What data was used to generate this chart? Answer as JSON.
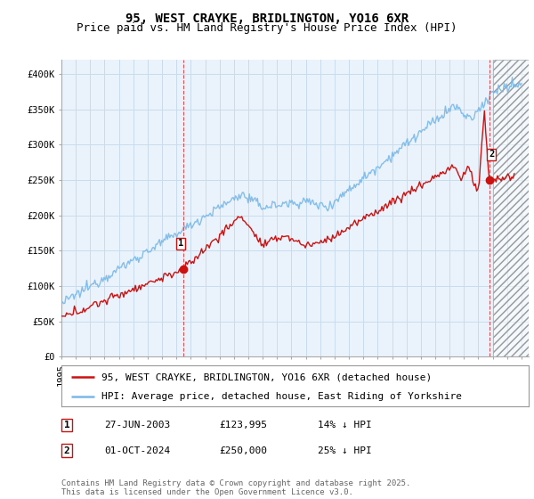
{
  "title": "95, WEST CRAYKE, BRIDLINGTON, YO16 6XR",
  "subtitle": "Price paid vs. HM Land Registry's House Price Index (HPI)",
  "ylim": [
    0,
    420000
  ],
  "yticks": [
    0,
    50000,
    100000,
    150000,
    200000,
    250000,
    300000,
    350000,
    400000
  ],
  "ytick_labels": [
    "£0",
    "£50K",
    "£100K",
    "£150K",
    "£200K",
    "£250K",
    "£300K",
    "£350K",
    "£400K"
  ],
  "xlim_start": 1995.0,
  "xlim_end": 2027.5,
  "background_color": "#ffffff",
  "grid_color": "#c8dced",
  "hpi_color": "#7ab8e8",
  "price_color": "#cc1111",
  "marker1_date": 2003.49,
  "marker1_price": 123995,
  "marker2_date": 2024.75,
  "marker2_price": 250000,
  "legend_line1": "95, WEST CRAYKE, BRIDLINGTON, YO16 6XR (detached house)",
  "legend_line2": "HPI: Average price, detached house, East Riding of Yorkshire",
  "annotation1_label": "1",
  "annotation2_label": "2",
  "table_row1": [
    "1",
    "27-JUN-2003",
    "£123,995",
    "14% ↓ HPI"
  ],
  "table_row2": [
    "2",
    "01-OCT-2024",
    "£250,000",
    "25% ↓ HPI"
  ],
  "footer": "Contains HM Land Registry data © Crown copyright and database right 2025.\nThis data is licensed under the Open Government Licence v3.0.",
  "title_fontsize": 10,
  "subtitle_fontsize": 9,
  "tick_fontsize": 7.5,
  "legend_fontsize": 8,
  "table_fontsize": 8
}
